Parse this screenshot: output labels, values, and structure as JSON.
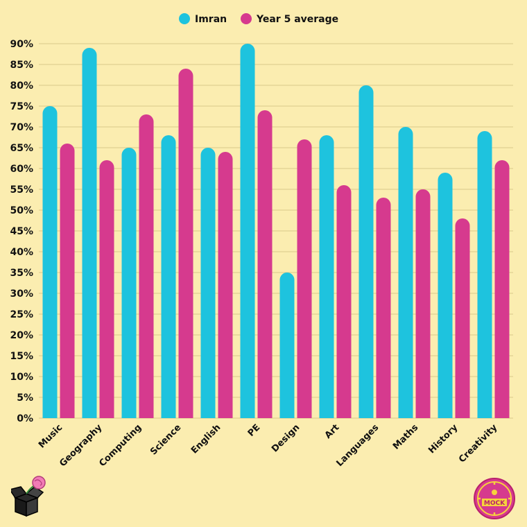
{
  "chart_data": {
    "type": "bar",
    "categories": [
      "Music",
      "Geography",
      "Computing",
      "Science",
      "English",
      "PE",
      "Design",
      "Art",
      "Languages",
      "Maths",
      "History",
      "Creativity"
    ],
    "series": [
      {
        "name": "Imran",
        "color": "#1EC3DE",
        "values": [
          75,
          89,
          65,
          68,
          65,
          90,
          35,
          68,
          80,
          70,
          59,
          69
        ]
      },
      {
        "name": "Year 5 average",
        "color": "#D63A8E",
        "values": [
          66,
          62,
          73,
          84,
          64,
          74,
          67,
          56,
          53,
          55,
          48,
          62
        ]
      }
    ],
    "yticks": [
      "0%",
      "5%",
      "10%",
      "15%",
      "20%",
      "25%",
      "30%",
      "35%",
      "40%",
      "45%",
      "50%",
      "55%",
      "60%",
      "65%",
      "70%",
      "75%",
      "80%",
      "85%",
      "90%"
    ],
    "ylim": [
      0,
      90
    ],
    "grid": true,
    "legend_position": "top-center"
  },
  "branding": {
    "left_logo_icon": "brain-box-icon",
    "right_logo_icon": "mock-clock-icon",
    "right_logo_text": "MOCK"
  }
}
